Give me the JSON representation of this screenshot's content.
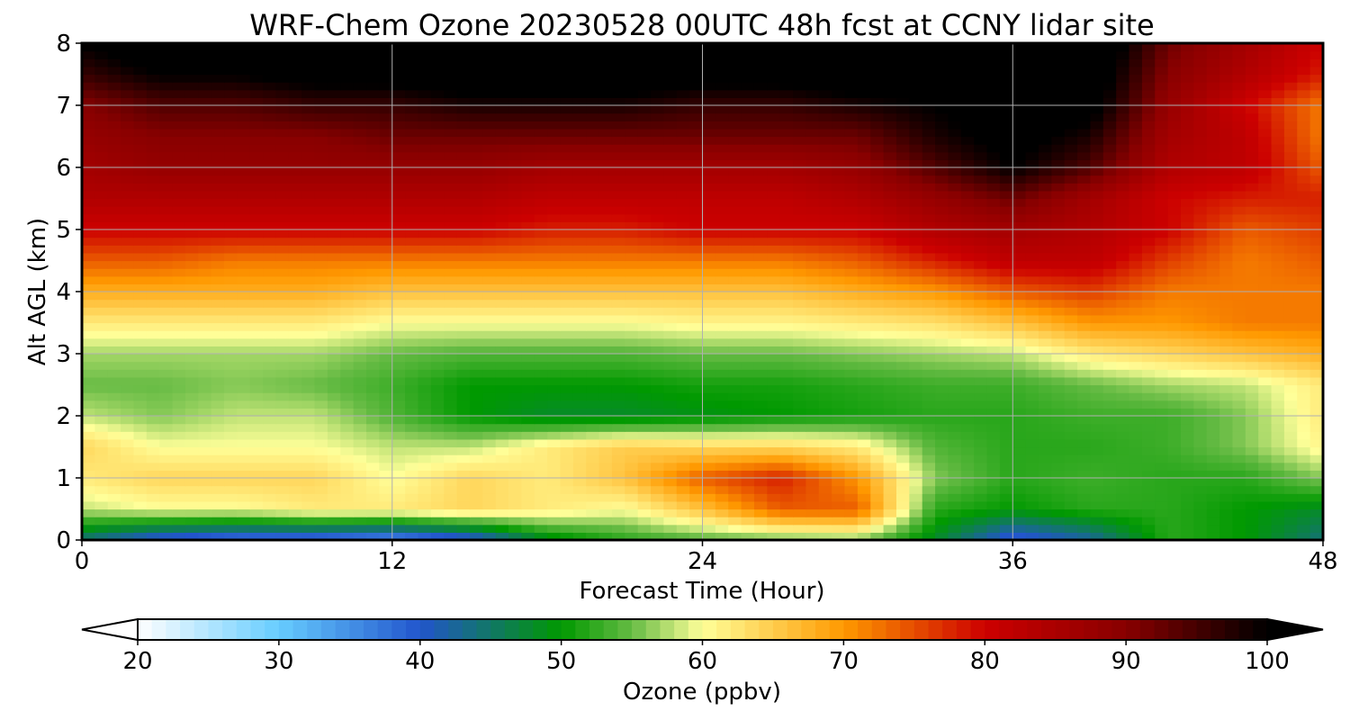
{
  "chart_data": {
    "type": "heatmap",
    "title": "WRF-Chem Ozone  20230528 00UTC 48h fcst at CCNY lidar site",
    "xlabel": "Forecast Time (Hour)",
    "ylabel": "Alt AGL (km)",
    "xlim": [
      0,
      48
    ],
    "ylim": [
      0,
      8
    ],
    "xticks": [
      0,
      12,
      24,
      36,
      48
    ],
    "yticks": [
      0,
      1,
      2,
      3,
      4,
      5,
      6,
      7,
      8
    ],
    "grid": true,
    "x": [
      0,
      3,
      6,
      9,
      12,
      15,
      18,
      21,
      24,
      27,
      30,
      33,
      36,
      39,
      42,
      45,
      48
    ],
    "y": [
      0,
      0.5,
      1,
      1.5,
      2,
      2.5,
      3,
      3.5,
      4,
      4.5,
      5,
      5.5,
      6,
      6.5,
      7,
      7.5,
      8
    ],
    "z_units": "ppbv",
    "z": [
      [
        44,
        38,
        36,
        36,
        34,
        38,
        48,
        52,
        54,
        55,
        56,
        48,
        38,
        42,
        52,
        50,
        44
      ],
      [
        58,
        60,
        60,
        62,
        62,
        64,
        62,
        60,
        66,
        74,
        74,
        52,
        50,
        52,
        52,
        50,
        48
      ],
      [
        62,
        64,
        64,
        64,
        60,
        64,
        62,
        66,
        74,
        78,
        70,
        56,
        52,
        53,
        52,
        52,
        56
      ],
      [
        64,
        60,
        60,
        60,
        58,
        58,
        62,
        65,
        64,
        64,
        62,
        54,
        52,
        52,
        53,
        56,
        61
      ],
      [
        58,
        56,
        58,
        58,
        54,
        50,
        48,
        48,
        49,
        50,
        51,
        52,
        52,
        53,
        53,
        56,
        62
      ],
      [
        55,
        55,
        56,
        55,
        53,
        50,
        50,
        50,
        51,
        51,
        52,
        53,
        53,
        55,
        57,
        58,
        62
      ],
      [
        57,
        57,
        57,
        57,
        55,
        54,
        54,
        54,
        55,
        55,
        56,
        57,
        58,
        62,
        64,
        66,
        68
      ],
      [
        62,
        62,
        62,
        62,
        60,
        60,
        60,
        60,
        61,
        61,
        62,
        63,
        66,
        70,
        70,
        72,
        72
      ],
      [
        68,
        68,
        68,
        68,
        66,
        66,
        66,
        66,
        66,
        66,
        68,
        70,
        74,
        76,
        72,
        72,
        72
      ],
      [
        74,
        74,
        72,
        72,
        72,
        72,
        72,
        72,
        72,
        72,
        74,
        78,
        82,
        82,
        76,
        72,
        74
      ],
      [
        80,
        80,
        80,
        80,
        80,
        80,
        78,
        78,
        80,
        80,
        80,
        84,
        86,
        84,
        80,
        74,
        76
      ],
      [
        84,
        84,
        84,
        84,
        84,
        84,
        82,
        82,
        82,
        82,
        84,
        88,
        92,
        86,
        80,
        78,
        78
      ],
      [
        86,
        88,
        88,
        88,
        88,
        88,
        86,
        86,
        86,
        86,
        88,
        94,
        100,
        94,
        84,
        82,
        74
      ],
      [
        88,
        90,
        90,
        90,
        92,
        92,
        92,
        92,
        92,
        92,
        92,
        98,
        102,
        98,
        86,
        82,
        72
      ],
      [
        90,
        94,
        94,
        96,
        96,
        98,
        98,
        98,
        96,
        96,
        98,
        100,
        104,
        102,
        88,
        80,
        72
      ],
      [
        96,
        100,
        100,
        102,
        102,
        104,
        104,
        104,
        102,
        102,
        104,
        104,
        104,
        104,
        90,
        84,
        78
      ],
      [
        100,
        104,
        104,
        104,
        104,
        106,
        106,
        106,
        104,
        104,
        106,
        106,
        106,
        106,
        92,
        86,
        80
      ]
    ],
    "colorbar": {
      "label": "Ozone  (ppbv)",
      "min": 20,
      "max": 100,
      "ticks": [
        20,
        30,
        40,
        50,
        60,
        70,
        80,
        90,
        100
      ],
      "extend": "both",
      "stops": [
        {
          "value": 20,
          "color": "#ffffff"
        },
        {
          "value": 30,
          "color": "#66ccff"
        },
        {
          "value": 40,
          "color": "#2255cc"
        },
        {
          "value": 50,
          "color": "#009900"
        },
        {
          "value": 55,
          "color": "#66bb44"
        },
        {
          "value": 60,
          "color": "#ffff99"
        },
        {
          "value": 70,
          "color": "#ff9900"
        },
        {
          "value": 80,
          "color": "#cc0000"
        },
        {
          "value": 90,
          "color": "#880000"
        },
        {
          "value": 100,
          "color": "#000000"
        }
      ]
    }
  }
}
